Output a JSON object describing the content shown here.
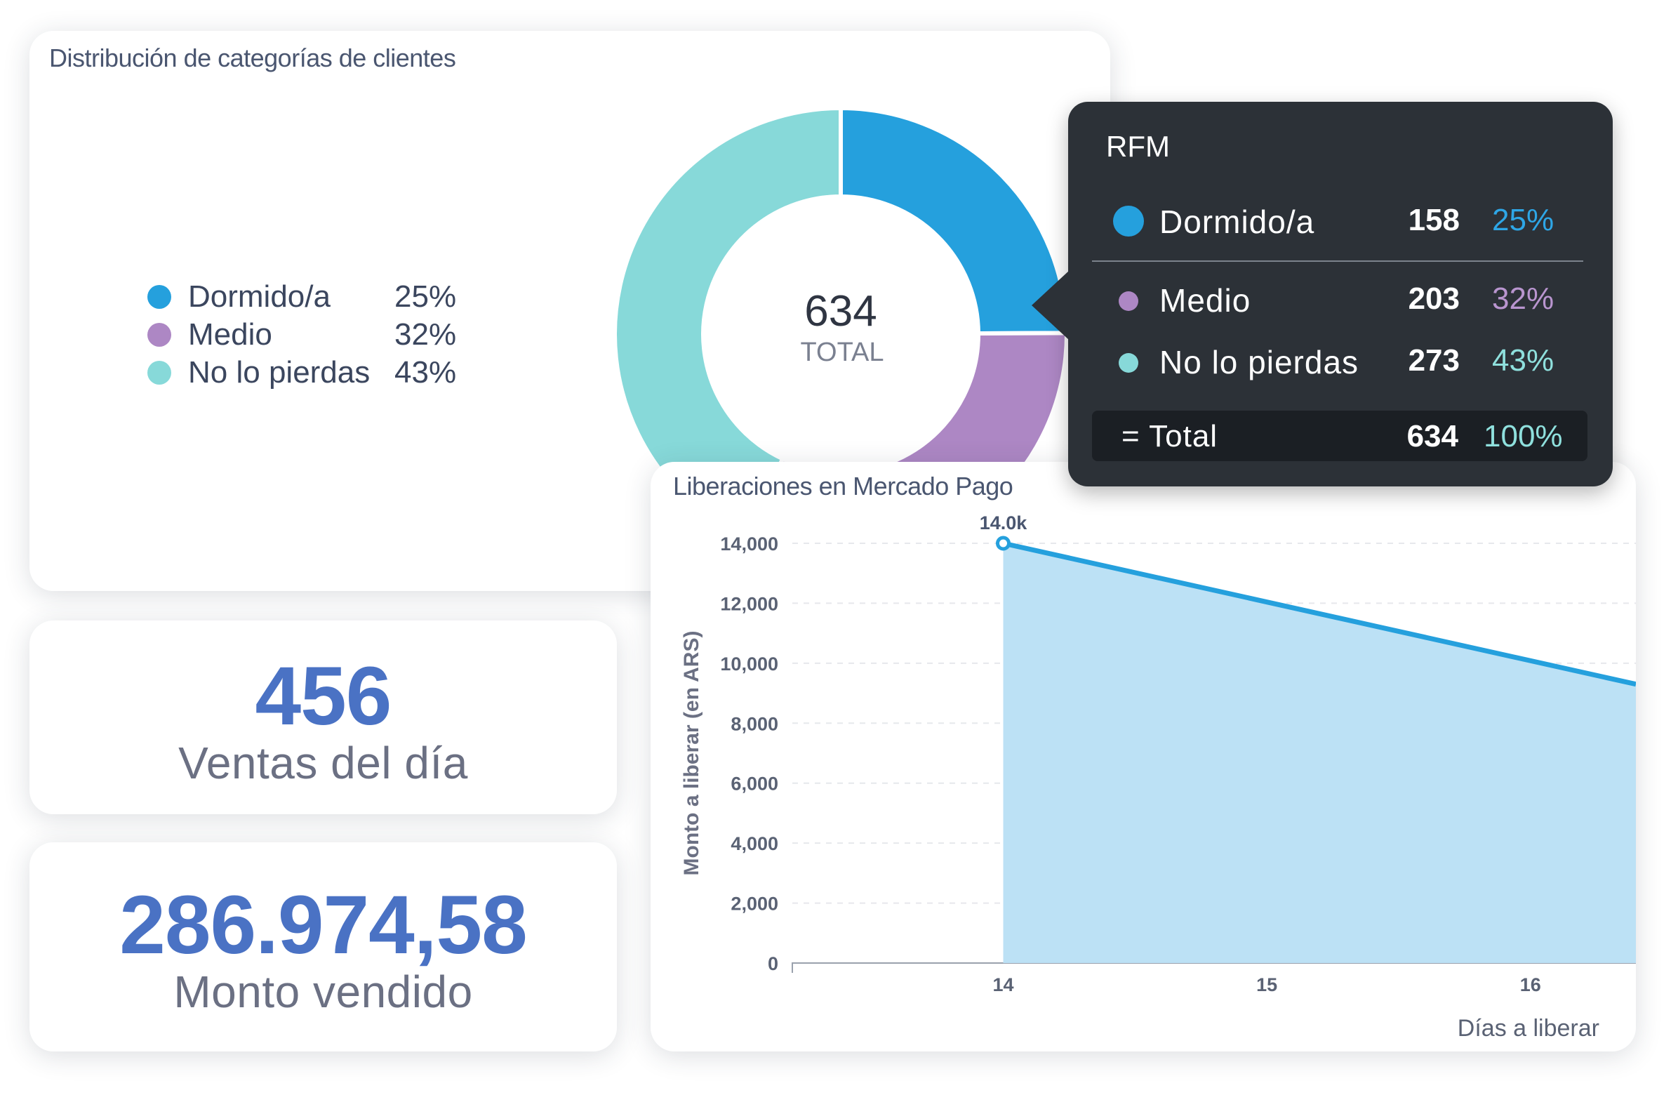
{
  "colors": {
    "dormido": "#25a0dd",
    "medio": "#ad87c4",
    "no_lo_pierdas": "#87d9d9",
    "kpi_blue": "#4a72c4",
    "area_fill": "#bce1f5",
    "line_stroke": "#25a0dd"
  },
  "donut_card": {
    "title": "Distribución de categorías de clientes",
    "legend": [
      {
        "label": "Dormido/a",
        "pct": "25%",
        "color": "#25a0dd"
      },
      {
        "label": "Medio",
        "pct": "32%",
        "color": "#ad87c4"
      },
      {
        "label": "No lo pierdas",
        "pct": "43%",
        "color": "#87d9d9"
      }
    ],
    "center_value": "634",
    "center_label": "TOTAL"
  },
  "kpi_ventas": {
    "value": "456",
    "label": "Ventas del día"
  },
  "kpi_monto": {
    "value": "286.974,58",
    "label": "Monto vendido"
  },
  "line_card": {
    "title": "Liberaciones en Mercado Pago",
    "ylabel": "Monto a liberar (en ARS)",
    "xlabel": "Días a liberar",
    "point_label": "14.0k"
  },
  "tooltip": {
    "title": "RFM",
    "rows": [
      {
        "label": "Dormido/a",
        "count": "158",
        "pct": "25%",
        "color": "#25a0dd"
      },
      {
        "label": "Medio",
        "count": "203",
        "pct": "32%",
        "color": "#ad87c4"
      },
      {
        "label": "No lo pierdas",
        "count": "273",
        "pct": "43%",
        "color": "#87d9d9"
      }
    ],
    "total": {
      "label": "= Total",
      "count": "634",
      "pct": "100%"
    }
  },
  "chart_data": [
    {
      "type": "pie",
      "title": "Distribución de categorías de clientes",
      "categories": [
        "Dormido/a",
        "Medio",
        "No lo pierdas"
      ],
      "values": [
        158,
        203,
        273
      ],
      "legend": "left"
    },
    {
      "type": "area",
      "title": "Liberaciones en Mercado Pago",
      "xlabel": "Días a liberar",
      "ylabel": "Monto a liberar (en ARS)",
      "x": [
        14,
        16.4
      ],
      "values": [
        14000,
        9300
      ],
      "xticks": [
        14,
        15,
        16
      ],
      "yticks": [
        0,
        2000,
        4000,
        6000,
        8000,
        10000,
        12000,
        14000
      ],
      "ylim": [
        0,
        14000
      ],
      "xlim": [
        13.2,
        16.4
      ],
      "grid": true,
      "annotations": [
        {
          "x": 14,
          "y": 14000,
          "text": "14.0k"
        }
      ]
    }
  ]
}
